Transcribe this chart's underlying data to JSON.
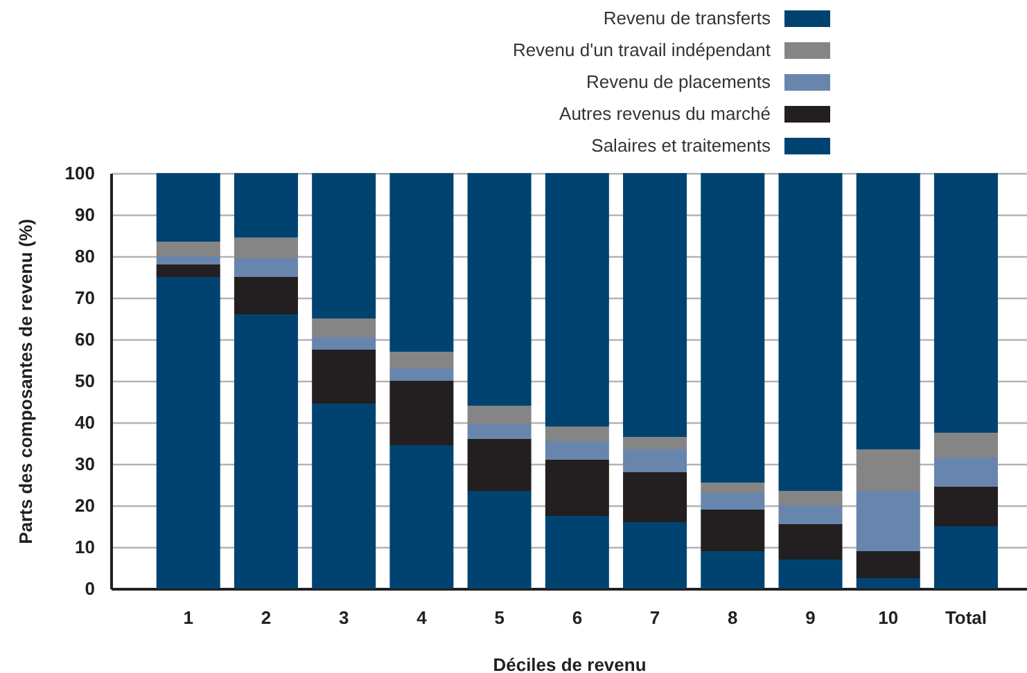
{
  "chart_data": {
    "type": "bar",
    "stacked": true,
    "xlabel": "Déciles de revenu",
    "ylabel": "Parts des composantes de revenu (%)",
    "categories": [
      "1",
      "2",
      "3",
      "4",
      "5",
      "6",
      "7",
      "8",
      "9",
      "10",
      "Total"
    ],
    "series": [
      {
        "name": "Salaires et traitements",
        "color": "#004371",
        "values": [
          75,
          66,
          44.5,
          34.5,
          23.5,
          17.5,
          16,
          9,
          7,
          2.5,
          15
        ]
      },
      {
        "name": "Autres revenus du marché",
        "color": "#231f20",
        "values": [
          3,
          9,
          13,
          15.5,
          12.5,
          13.5,
          12,
          10,
          8.5,
          6.5,
          9.5
        ]
      },
      {
        "name": "Revenu de placements",
        "color": "#6886ad",
        "values": [
          2,
          4.5,
          3,
          3,
          3.5,
          4.5,
          5.5,
          4,
          4.5,
          14.5,
          7
        ]
      },
      {
        "name": "Revenu d'un travail indépendant",
        "color": "#858585",
        "values": [
          3.5,
          5,
          4.5,
          4,
          4.5,
          3.5,
          3,
          2.5,
          3.5,
          10,
          6
        ]
      },
      {
        "name": "Revenu de transferts",
        "color": "#004371",
        "values": [
          16.5,
          15.5,
          35,
          43,
          56,
          61,
          63.5,
          74.5,
          76.5,
          66.5,
          62.5
        ]
      }
    ],
    "ylim": [
      0,
      100
    ],
    "yticks": [
      0,
      10,
      20,
      30,
      40,
      50,
      60,
      70,
      80,
      90,
      100
    ],
    "grid": "y",
    "legend": "top right"
  }
}
